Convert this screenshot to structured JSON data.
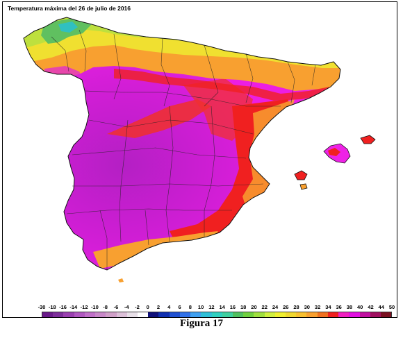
{
  "map": {
    "title": "Temperatura máxima del 26 de julio de 2016"
  },
  "legend": {
    "labels": [
      "-30",
      "-18",
      "-16",
      "-14",
      "-12",
      "-10",
      "-8",
      "-6",
      "-4",
      "-2",
      "0",
      "2",
      "4",
      "6",
      "8",
      "10",
      "12",
      "14",
      "16",
      "18",
      "20",
      "22",
      "24",
      "26",
      "28",
      "30",
      "32",
      "34",
      "36",
      "38",
      "40",
      "42",
      "44",
      "50"
    ],
    "colors": [
      "#6a1a8a",
      "#7d2e9a",
      "#9a40b0",
      "#b058c0",
      "#c070c8",
      "#c888c8",
      "#d0a0c8",
      "#dcc0d8",
      "#e8e0e8",
      "#ffffff",
      "#10107a",
      "#1030b0",
      "#2050d0",
      "#3070e8",
      "#40a0f0",
      "#30c0d8",
      "#30d0c0",
      "#40d0a0",
      "#50c060",
      "#70d040",
      "#a0e040",
      "#d0f040",
      "#f0f030",
      "#f0d830",
      "#f8c030",
      "#f8a030",
      "#f07020",
      "#f02020",
      "#f020c0",
      "#e010e0",
      "#c010a0",
      "#a01060",
      "#7a1020"
    ]
  },
  "caption": {
    "figure_label": "Figura 17"
  },
  "colors": {
    "hot_magenta": "#f020e0",
    "very_hot": "#b020c0",
    "red": "#f02020",
    "orange": "#f8a030",
    "yellow": "#f0f030",
    "green": "#a0e040",
    "border": "#000000"
  }
}
